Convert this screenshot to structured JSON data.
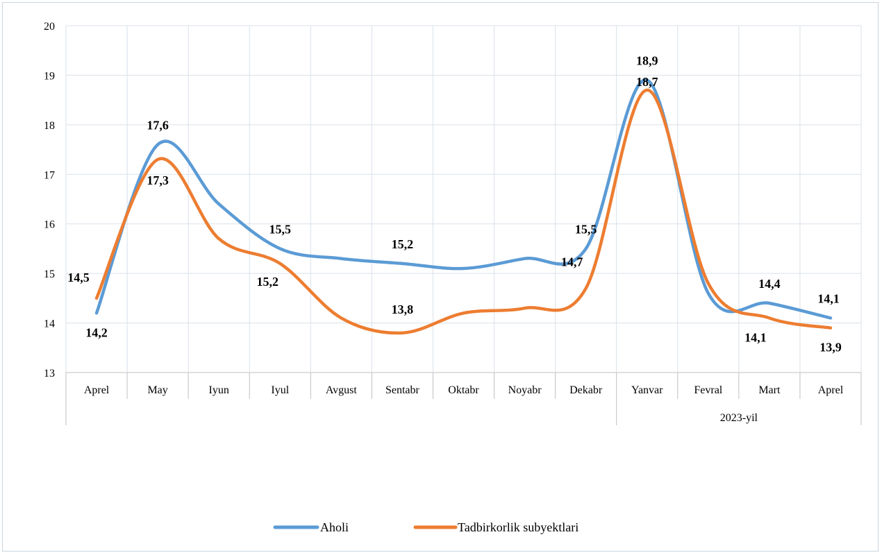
{
  "chart_data": {
    "type": "line",
    "smooth": true,
    "categories": [
      "Aprel",
      "May",
      "Iyun",
      "Iyul",
      "Avgust",
      "Sentabr",
      "Oktabr",
      "Noyabr",
      "Dekabr",
      "Yanvar",
      "Fevral",
      "Mart",
      "Aprel"
    ],
    "group_label": "2023-yil",
    "group_start_index": 9,
    "ylim": [
      13,
      20
    ],
    "yticks": [
      "13",
      "14",
      "15",
      "16",
      "17",
      "18",
      "19",
      "20"
    ],
    "grid": true,
    "legend_position": "bottom",
    "series": [
      {
        "name": "Aholi",
        "color": "#5b9bd5",
        "values": [
          14.2,
          17.6,
          16.4,
          15.5,
          15.3,
          15.2,
          15.1,
          15.3,
          15.5,
          18.9,
          14.6,
          14.4,
          14.1
        ],
        "labels": [
          "14,2",
          "17,6",
          "",
          "15,5",
          "",
          "15,2",
          "",
          "",
          "15,5",
          "18,9",
          "",
          "14,4",
          "14,1"
        ]
      },
      {
        "name": "Tadbirkorlik subyektlari",
        "color": "#ed7d31",
        "values": [
          14.5,
          17.3,
          15.7,
          15.2,
          14.1,
          13.8,
          14.2,
          14.3,
          14.7,
          18.7,
          14.8,
          14.1,
          13.9
        ],
        "labels": [
          "14,5",
          "17,3",
          "",
          "15,2",
          "",
          "13,8",
          "",
          "",
          "14,7",
          "18,7",
          "",
          "14,1",
          "13,9"
        ]
      }
    ]
  }
}
